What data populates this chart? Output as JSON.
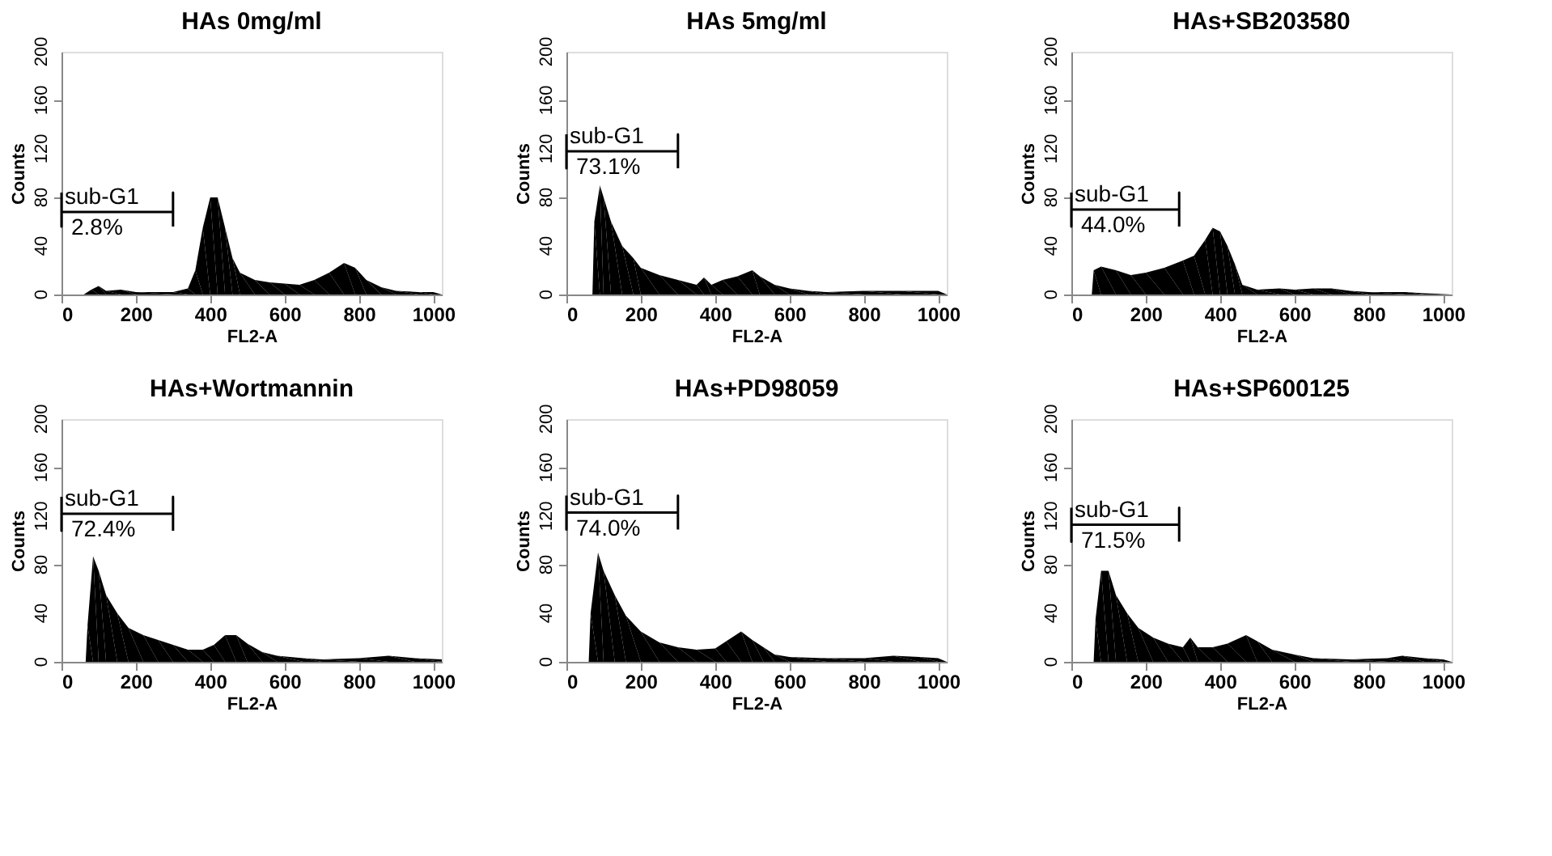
{
  "chart_data": [
    {
      "type": "area",
      "title": "HAs 0mg/ml",
      "xlabel": "FL2-A",
      "ylabel": "Counts",
      "xlim": [
        0,
        1023
      ],
      "ylim": [
        0,
        200
      ],
      "xticks": [
        0,
        200,
        400,
        600,
        800,
        1000
      ],
      "yticks": [
        0,
        40,
        80,
        120,
        160,
        200
      ],
      "series": [
        {
          "color": "#000000",
          "x": [
            0,
            60,
            80,
            100,
            120,
            160,
            200,
            300,
            340,
            360,
            380,
            400,
            420,
            440,
            460,
            480,
            520,
            560,
            600,
            640,
            680,
            720,
            760,
            790,
            820,
            860,
            900,
            960,
            1000,
            1023
          ],
          "values": [
            0,
            0,
            4,
            7,
            3,
            4,
            2,
            2,
            5,
            20,
            55,
            80,
            80,
            55,
            30,
            18,
            12,
            10,
            9,
            8,
            12,
            18,
            26,
            22,
            12,
            6,
            3,
            2,
            2,
            0
          ]
        },
        {
          "type": "line",
          "color": "#000000",
          "x": [
            0,
            0,
            0,
            300,
            300,
            300
          ],
          "values": [
            84,
            56,
            68,
            68,
            84,
            56
          ]
        }
      ],
      "annotations": [
        "sub-G1",
        "2.8%"
      ]
    },
    {
      "type": "area",
      "title": "HAs 5mg/ml",
      "xlabel": "FL2-A",
      "ylabel": "Counts",
      "xlim": [
        0,
        1023
      ],
      "ylim": [
        0,
        200
      ],
      "xticks": [
        0,
        200,
        400,
        600,
        800,
        1000
      ],
      "yticks": [
        0,
        40,
        80,
        120,
        160,
        200
      ],
      "series": [
        {
          "color": "#000000",
          "x": [
            0,
            70,
            75,
            90,
            100,
            120,
            150,
            180,
            200,
            250,
            300,
            350,
            370,
            390,
            420,
            460,
            500,
            520,
            560,
            600,
            650,
            700,
            800,
            900,
            1000,
            1023
          ],
          "values": [
            0,
            0,
            60,
            90,
            80,
            60,
            40,
            30,
            22,
            16,
            12,
            8,
            14,
            8,
            12,
            15,
            20,
            15,
            8,
            5,
            3,
            2,
            3,
            3,
            3,
            0
          ]
        },
        {
          "type": "line",
          "color": "#000000",
          "x": [
            0,
            0,
            0,
            300,
            300,
            300
          ],
          "values": [
            132,
            104,
            118,
            118,
            132,
            104
          ]
        }
      ],
      "annotations": [
        "sub-G1",
        "73.1%"
      ]
    },
    {
      "type": "area",
      "title": "HAs+SB203580",
      "xlabel": "FL2-A",
      "ylabel": "Counts",
      "xlim": [
        0,
        1023
      ],
      "ylim": [
        0,
        200
      ],
      "xticks": [
        0,
        200,
        400,
        600,
        800,
        1000
      ],
      "yticks": [
        0,
        40,
        80,
        120,
        160,
        200
      ],
      "series": [
        {
          "color": "#000000",
          "x": [
            0,
            55,
            60,
            80,
            120,
            160,
            200,
            250,
            300,
            330,
            360,
            380,
            400,
            420,
            440,
            460,
            500,
            560,
            600,
            650,
            700,
            750,
            800,
            900,
            950,
            1023
          ],
          "values": [
            0,
            0,
            20,
            23,
            20,
            16,
            18,
            22,
            28,
            32,
            45,
            55,
            52,
            40,
            25,
            8,
            4,
            5,
            4,
            5,
            5,
            3,
            2,
            2,
            1,
            0
          ]
        },
        {
          "type": "line",
          "color": "#000000",
          "x": [
            0,
            0,
            0,
            290,
            290,
            290
          ],
          "values": [
            84,
            56,
            70,
            70,
            84,
            56
          ]
        }
      ],
      "annotations": [
        "sub-G1",
        "44.0%"
      ]
    },
    {
      "type": "area",
      "title": "HAs+Wortmannin",
      "xlabel": "FL2-A",
      "ylabel": "Counts",
      "xlim": [
        0,
        1023
      ],
      "ylim": [
        0,
        200
      ],
      "xticks": [
        0,
        200,
        400,
        600,
        800,
        1000
      ],
      "yticks": [
        0,
        40,
        80,
        120,
        160,
        200
      ],
      "series": [
        {
          "color": "#000000",
          "x": [
            0,
            65,
            70,
            85,
            100,
            120,
            150,
            180,
            220,
            260,
            300,
            340,
            380,
            410,
            440,
            470,
            500,
            540,
            580,
            650,
            700,
            800,
            880,
            950,
            1023
          ],
          "values": [
            0,
            0,
            30,
            87,
            75,
            55,
            40,
            28,
            22,
            18,
            14,
            10,
            10,
            14,
            22,
            22,
            15,
            8,
            5,
            3,
            2,
            3,
            5,
            3,
            2
          ]
        },
        {
          "type": "line",
          "color": "#000000",
          "x": [
            0,
            0,
            0,
            300,
            300,
            300
          ],
          "values": [
            136,
            108,
            122,
            122,
            136,
            108
          ]
        }
      ],
      "annotations": [
        "sub-G1",
        "72.4%"
      ]
    },
    {
      "type": "area",
      "title": "HAs+PD98059",
      "xlabel": "FL2-A",
      "ylabel": "Counts",
      "xlim": [
        0,
        1023
      ],
      "ylim": [
        0,
        200
      ],
      "xticks": [
        0,
        200,
        400,
        600,
        800,
        1000
      ],
      "yticks": [
        0,
        40,
        80,
        120,
        160,
        200
      ],
      "series": [
        {
          "color": "#000000",
          "x": [
            0,
            60,
            65,
            85,
            100,
            130,
            160,
            200,
            250,
            300,
            350,
            400,
            430,
            470,
            500,
            530,
            560,
            600,
            700,
            800,
            880,
            950,
            1000,
            1023
          ],
          "values": [
            0,
            0,
            40,
            90,
            75,
            55,
            38,
            25,
            16,
            12,
            10,
            11,
            17,
            25,
            18,
            12,
            6,
            4,
            3,
            3,
            5,
            4,
            3,
            0
          ]
        },
        {
          "type": "line",
          "color": "#000000",
          "x": [
            0,
            0,
            0,
            300,
            300,
            300
          ],
          "values": [
            137,
            109,
            123,
            123,
            137,
            109
          ]
        }
      ],
      "annotations": [
        "sub-G1",
        "74.0%"
      ]
    },
    {
      "type": "area",
      "title": "HAs+SP600125",
      "xlabel": "FL2-A",
      "ylabel": "Counts",
      "xlim": [
        0,
        1023
      ],
      "ylim": [
        0,
        200
      ],
      "xticks": [
        0,
        200,
        400,
        600,
        800,
        1000
      ],
      "yticks": [
        0,
        40,
        80,
        120,
        160,
        200
      ],
      "series": [
        {
          "color": "#000000",
          "x": [
            0,
            60,
            65,
            80,
            100,
            120,
            150,
            180,
            220,
            260,
            300,
            320,
            340,
            380,
            420,
            470,
            500,
            540,
            600,
            650,
            750,
            850,
            890,
            950,
            1000,
            1023
          ],
          "values": [
            0,
            0,
            35,
            75,
            75,
            55,
            40,
            28,
            20,
            15,
            12,
            20,
            12,
            12,
            15,
            22,
            17,
            10,
            6,
            3,
            2,
            3,
            5,
            3,
            2,
            0
          ]
        },
        {
          "type": "line",
          "color": "#000000",
          "x": [
            0,
            0,
            0,
            290,
            290,
            290
          ],
          "values": [
            127,
            99,
            113,
            113,
            127,
            99
          ]
        }
      ],
      "annotations": [
        "sub-G1",
        "71.5%"
      ]
    }
  ]
}
